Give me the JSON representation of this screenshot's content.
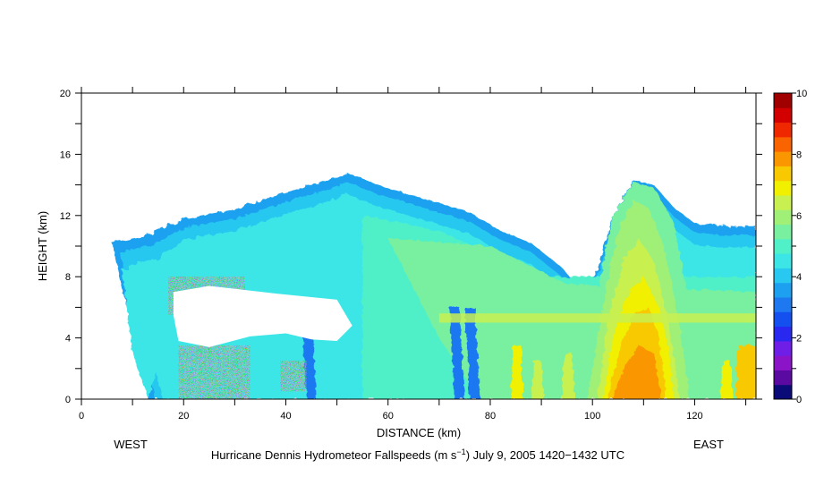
{
  "chart_data": {
    "type": "heatmap",
    "title": "Hurricane Dennis Hydrometeor Fallspeeds (m s⁻¹) July 9, 2005 1420–1432 UTC",
    "title_parts": {
      "before": "Hurricane Dennis Hydrometeor Fallspeeds (m s",
      "sup": "−1",
      "after": ") July 9, 2005 1420−1432 UTC"
    },
    "xlabel": "DISTANCE (km)",
    "ylabel": "HEIGHT (km)",
    "x_range": [
      0,
      132
    ],
    "y_range": [
      0,
      20
    ],
    "x_ticks": [
      0,
      20,
      40,
      60,
      80,
      100,
      120
    ],
    "y_ticks": [
      0,
      4,
      8,
      12,
      16,
      20
    ],
    "left_label": "WEST",
    "right_label": "EAST",
    "colorbar": {
      "min": 0,
      "max": 10,
      "step": 0.5,
      "tick_labels": [
        0,
        2,
        4,
        6,
        8,
        10
      ],
      "colors": [
        "#0a0a78",
        "#5a0aa0",
        "#8c14c8",
        "#6e1ee6",
        "#2828f0",
        "#1450f0",
        "#1e78f0",
        "#1ea0f0",
        "#28c8f0",
        "#3ce6e6",
        "#50f0c8",
        "#78f0a0",
        "#a0f078",
        "#c8f050",
        "#f0f000",
        "#f8c800",
        "#fa9600",
        "#fa6400",
        "#f02800",
        "#d20000",
        "#a00000"
      ]
    },
    "cloud_outline": {
      "top_km": [
        [
          6,
          10.2
        ],
        [
          12,
          10.6
        ],
        [
          20,
          11.8
        ],
        [
          30,
          12.4
        ],
        [
          40,
          13.5
        ],
        [
          48,
          14.3
        ],
        [
          52,
          14.8
        ],
        [
          58,
          14.0
        ],
        [
          64,
          13.4
        ],
        [
          70,
          12.8
        ],
        [
          76,
          12.2
        ],
        [
          82,
          11.0
        ],
        [
          88,
          10.2
        ],
        [
          94,
          8.6
        ],
        [
          98,
          7.0
        ],
        [
          101,
          8.5
        ],
        [
          104,
          12.0
        ],
        [
          108,
          14.3
        ],
        [
          112,
          14.0
        ],
        [
          116,
          12.5
        ],
        [
          120,
          11.5
        ],
        [
          126,
          11.3
        ],
        [
          132,
          11.3
        ]
      ],
      "left_edge_base_km": [
        13,
        0
      ]
    },
    "regions": [
      {
        "name": "no-data void",
        "x": [
          18,
          53
        ],
        "y": [
          3.8,
          7.5
        ],
        "value": null
      },
      {
        "name": "melting layer bright band",
        "x": [
          70,
          132
        ],
        "y": [
          5.0,
          5.6
        ],
        "value": 6.5
      },
      {
        "name": "convective core",
        "x": [
          103,
          116
        ],
        "y": [
          0,
          7
        ],
        "value": 8.0
      }
    ]
  }
}
